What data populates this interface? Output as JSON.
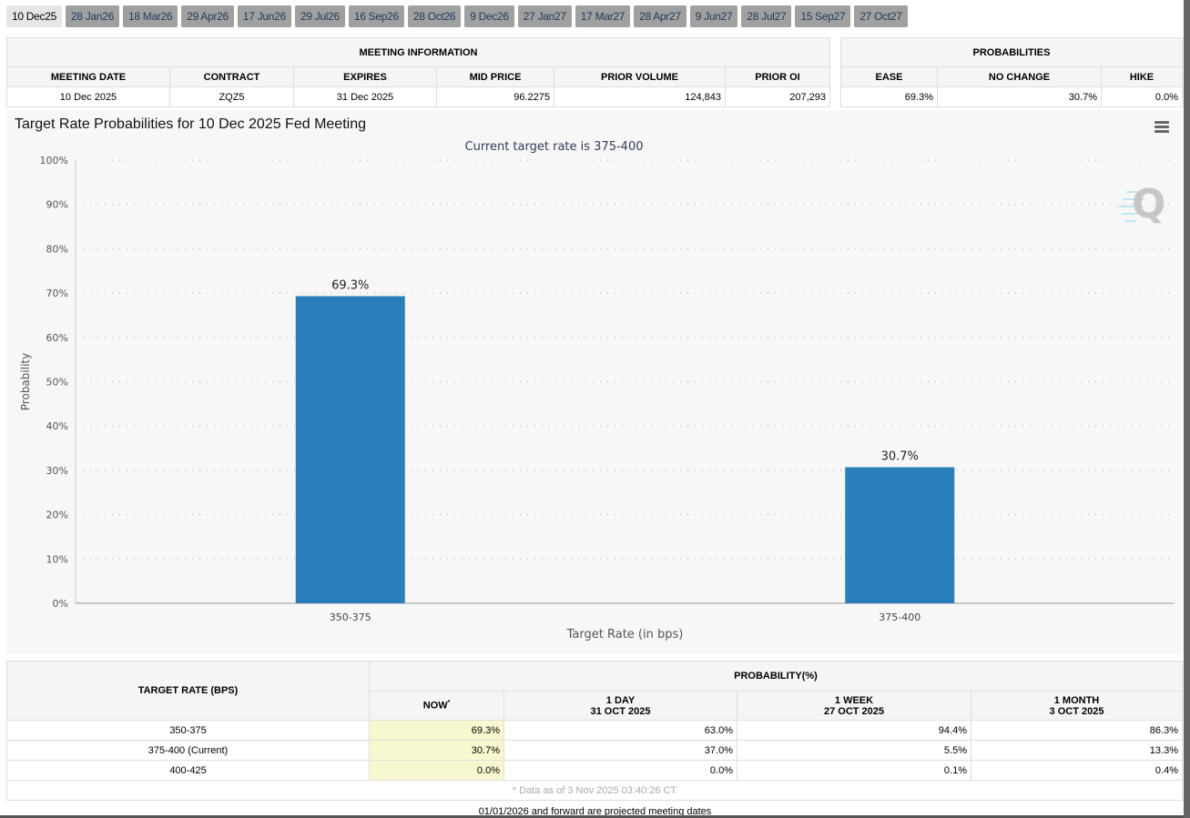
{
  "tabs": [
    "10 Dec25",
    "28 Jan26",
    "18 Mar26",
    "29 Apr26",
    "17 Jun26",
    "29 Jul26",
    "16 Sep26",
    "28 Oct26",
    "9 Dec26",
    "27 Jan27",
    "17 Mar27",
    "28 Apr27",
    "9 Jun27",
    "28 Jul27",
    "15 Sep27",
    "27 Oct27"
  ],
  "meeting": {
    "title": "MEETING INFORMATION",
    "headers": [
      "MEETING DATE",
      "CONTRACT",
      "EXPIRES",
      "MID PRICE",
      "PRIOR VOLUME",
      "PRIOR OI"
    ],
    "values": [
      "10 Dec 2025",
      "ZQZ5",
      "31 Dec 2025",
      "96.2275",
      "124,843",
      "207,293"
    ]
  },
  "probabilities": {
    "title": "PROBABILITIES",
    "headers": [
      "EASE",
      "NO CHANGE",
      "HIKE"
    ],
    "values": [
      "69.3%",
      "30.7%",
      "0.0%"
    ]
  },
  "chart": {
    "title": "Target Rate Probabilities for 10 Dec 2025 Fed Meeting",
    "colors": {
      "bar": "#2a7fba"
    }
  },
  "chart_data": {
    "type": "bar",
    "title": "Target Rate Probabilities for 10 Dec 2025 Fed Meeting",
    "subtitle": "Current target rate is 375-400",
    "xlabel": "Target Rate (in bps)",
    "ylabel": "Probability",
    "categories": [
      "350-375",
      "375-400"
    ],
    "values": [
      69.3,
      30.7
    ],
    "data_labels": [
      "69.3%",
      "30.7%"
    ],
    "ylim": [
      0,
      100
    ],
    "yticks": [
      "0%",
      "10%",
      "20%",
      "30%",
      "40%",
      "50%",
      "60%",
      "70%",
      "80%",
      "90%",
      "100%"
    ],
    "grid": true
  },
  "bottom": {
    "rate_header": "TARGET RATE (BPS)",
    "prob_header": "PROBABILITY(%)",
    "cols": [
      {
        "l1": "NOW",
        "l2": ""
      },
      {
        "l1": "1 DAY",
        "l2": "31 OCT 2025"
      },
      {
        "l1": "1 WEEK",
        "l2": "27 OCT 2025"
      },
      {
        "l1": "1 MONTH",
        "l2": "3 OCT 2025"
      }
    ],
    "now_mark": "*",
    "rows": [
      {
        "rate": "350-375",
        "v": [
          "69.3%",
          "63.0%",
          "94.4%",
          "86.3%"
        ]
      },
      {
        "rate": "375-400 (Current)",
        "v": [
          "30.7%",
          "37.0%",
          "5.5%",
          "13.3%"
        ]
      },
      {
        "rate": "400-425",
        "v": [
          "0.0%",
          "0.0%",
          "0.1%",
          "0.4%"
        ]
      }
    ],
    "footnote": "* Data as of 3 Nov 2025 03:40:26 CT"
  },
  "note": "01/01/2026 and forward are projected meeting dates"
}
